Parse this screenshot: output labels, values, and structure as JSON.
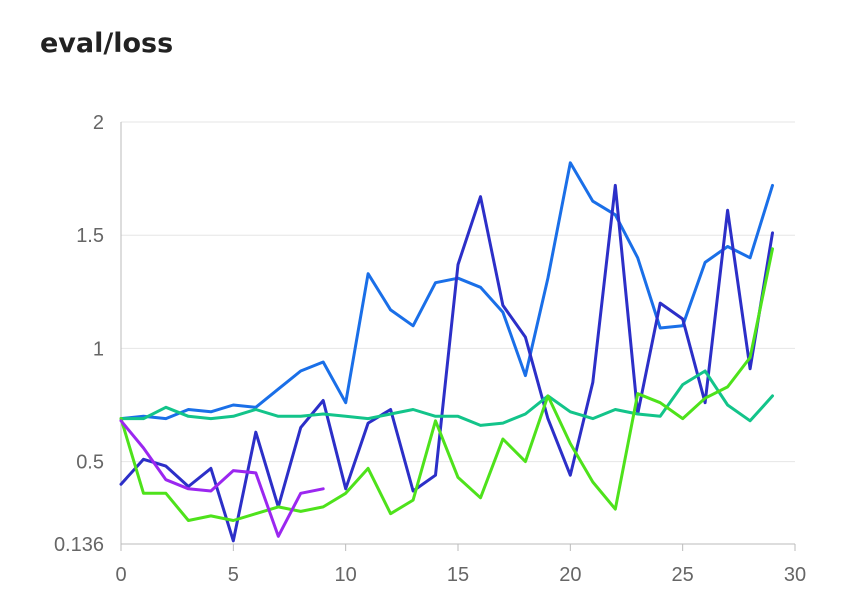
{
  "chart_data": {
    "type": "line",
    "title": "eval/loss",
    "xlabel": "",
    "ylabel": "",
    "xlim": [
      0,
      30
    ],
    "ylim": [
      0.136,
      2
    ],
    "xticks": [
      0,
      5,
      10,
      15,
      20,
      25,
      30
    ],
    "yticks": [
      0.136,
      0.5,
      1,
      1.5,
      2
    ],
    "ytick_labels": [
      "0.136",
      "0.5",
      "1",
      "1.5",
      "2"
    ],
    "grid": true,
    "series": [
      {
        "color": "#1a6fe8",
        "x": [
          0,
          1,
          2,
          3,
          4,
          5,
          6,
          7,
          8,
          9,
          10,
          11,
          12,
          13,
          14,
          15,
          16,
          17,
          18,
          19,
          20,
          21,
          22,
          23,
          24,
          25,
          26,
          27,
          28,
          29
        ],
        "y": [
          0.69,
          0.7,
          0.69,
          0.73,
          0.72,
          0.75,
          0.74,
          0.82,
          0.9,
          0.94,
          0.76,
          1.33,
          1.17,
          1.1,
          1.29,
          1.31,
          1.27,
          1.16,
          0.88,
          1.31,
          1.82,
          1.65,
          1.59,
          1.4,
          1.09,
          1.1,
          1.38,
          1.45,
          1.4,
          1.72
        ]
      },
      {
        "color": "#2c2fc8",
        "x": [
          0,
          1,
          2,
          3,
          4,
          5,
          6,
          7,
          8,
          9,
          10,
          11,
          12,
          13,
          14,
          15,
          16,
          17,
          18,
          19,
          20,
          21,
          22,
          23,
          24,
          25,
          26,
          27,
          28,
          29
        ],
        "y": [
          0.4,
          0.51,
          0.48,
          0.39,
          0.47,
          0.15,
          0.63,
          0.3,
          0.65,
          0.77,
          0.38,
          0.67,
          0.73,
          0.37,
          0.44,
          1.37,
          1.67,
          1.19,
          1.05,
          0.69,
          0.44,
          0.85,
          1.72,
          0.71,
          1.2,
          1.13,
          0.76,
          1.61,
          0.91,
          1.51
        ]
      },
      {
        "color": "#13c48a",
        "x": [
          0,
          1,
          2,
          3,
          4,
          5,
          6,
          7,
          8,
          9,
          10,
          11,
          12,
          13,
          14,
          15,
          16,
          17,
          18,
          19,
          20,
          21,
          22,
          23,
          24,
          25,
          26,
          27,
          28,
          29
        ],
        "y": [
          0.69,
          0.69,
          0.74,
          0.7,
          0.69,
          0.7,
          0.73,
          0.7,
          0.7,
          0.71,
          0.7,
          0.69,
          0.71,
          0.73,
          0.7,
          0.7,
          0.66,
          0.67,
          0.71,
          0.79,
          0.72,
          0.69,
          0.73,
          0.71,
          0.7,
          0.84,
          0.9,
          0.75,
          0.68,
          0.79
        ]
      },
      {
        "color": "#4ee21b",
        "x": [
          0,
          1,
          2,
          3,
          4,
          5,
          6,
          7,
          8,
          9,
          10,
          11,
          12,
          13,
          14,
          15,
          16,
          17,
          18,
          19,
          20,
          21,
          22,
          23,
          24,
          25,
          26,
          27,
          28,
          29
        ],
        "y": [
          0.69,
          0.36,
          0.36,
          0.24,
          0.26,
          0.24,
          0.27,
          0.3,
          0.28,
          0.3,
          0.36,
          0.47,
          0.27,
          0.33,
          0.68,
          0.43,
          0.34,
          0.6,
          0.5,
          0.79,
          0.58,
          0.41,
          0.29,
          0.8,
          0.76,
          0.69,
          0.78,
          0.83,
          0.96,
          1.44
        ]
      },
      {
        "color": "#9b27f0",
        "x": [
          0,
          1,
          2,
          3,
          4,
          5,
          6,
          7,
          8,
          9
        ],
        "y": [
          0.68,
          0.56,
          0.42,
          0.38,
          0.37,
          0.46,
          0.45,
          0.17,
          0.36,
          0.38
        ]
      }
    ]
  }
}
